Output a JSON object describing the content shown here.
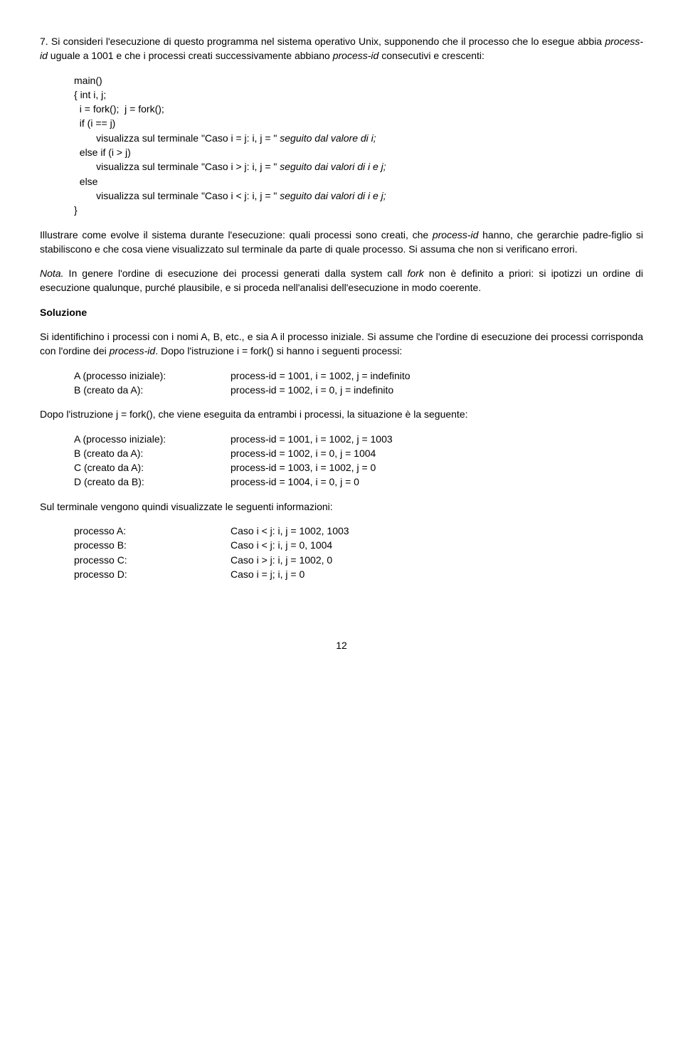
{
  "q7_intro": {
    "num": "7.",
    "pre": " Si consideri l'esecuzione di questo programma nel sistema operativo Unix, supponendo che il processo che lo esegue abbia ",
    "it1": "process-id",
    "mid1": " uguale a 1001 e che i processi creati successivamente abbiano ",
    "it2": "process-id",
    "post": " consecutivi e crescenti:"
  },
  "code": {
    "l1": "main()",
    "l2": "{ int i, j;",
    "l3": "  i = fork();  j = fork();",
    "l4": "  if (i == j)",
    "l5pre": "        visualizza sul terminale \"Caso i = j: i, j = \" ",
    "l5it": "seguito dal valore di i;",
    "l6": "  else if (i > j)",
    "l7pre": "        visualizza sul terminale \"Caso i > j: i, j = \" ",
    "l7it": "seguito dai valori di i e j;",
    "l8": "  else",
    "l9pre": "        visualizza sul terminale \"Caso i < j: i, j = \" ",
    "l9it": "seguito dai valori di i e j;",
    "l10": "}"
  },
  "illustrate": {
    "pre": "Illustrare come evolve il sistema durante l'esecuzione: quali processi sono creati, che ",
    "it": "process-id",
    "post": " hanno, che gerarchie padre-figlio si stabiliscono e che cosa viene visualizzato sul terminale da parte di quale processo. Si assuma che non si verificano errori."
  },
  "nota": {
    "label": "Nota.",
    "pre": " In genere l'ordine di esecuzione dei processi generati dalla system call ",
    "it": "fork",
    "post": " non è definito a priori: si ipotizzi un ordine di esecuzione qualunque, purché plausibile, e si proceda nell'analisi dell'esecuzione in modo coerente."
  },
  "sol_label": "Soluzione",
  "sol_p1": {
    "pre": "Si identifichino i processi con i nomi A, B, etc., e sia A il processo iniziale. Si assume che l'ordine di esecuzione dei processi corrisponda con l'ordine dei ",
    "it": "process-id",
    "post": ". Dopo l'istruzione i = fork() si hanno i seguenti processi:"
  },
  "tbl1": {
    "r1c1": "A (processo iniziale):",
    "r1c2": "process-id = 1001,  i = 1002,  j = indefinito",
    "r2c1": "B (creato da A):",
    "r2c2": "process-id = 1002,  i = 0,  j = indefinito"
  },
  "sol_p2": "Dopo l'istruzione j = fork(), che viene eseguita da entrambi i processi, la situazione è la seguente:",
  "tbl2": {
    "r1c1": "A (processo iniziale):",
    "r1c2": "process-id = 1001,  i = 1002,  j = 1003",
    "r2c1": "B (creato da A):",
    "r2c2": "process-id = 1002,  i = 0,  j = 1004",
    "r3c1": "C (creato da A):",
    "r3c2": "process-id = 1003,  i = 1002,  j = 0",
    "r4c1": "D (creato da B):",
    "r4c2": "process-id = 1004,  i = 0,  j = 0"
  },
  "sol_p3": "Sul terminale vengono quindi visualizzate le seguenti informazioni:",
  "tbl3": {
    "r1c1": "processo A:",
    "r1c2": "Caso i < j: i, j = 1002, 1003",
    "r2c1": "processo B:",
    "r2c2": "Caso i < j: i, j = 0, 1004",
    "r3c1": "processo C:",
    "r3c2": "Caso i > j: i, j = 1002, 0",
    "r4c1": "processo D:",
    "r4c2": "Caso i = j; i, j = 0"
  },
  "page_number": "12"
}
